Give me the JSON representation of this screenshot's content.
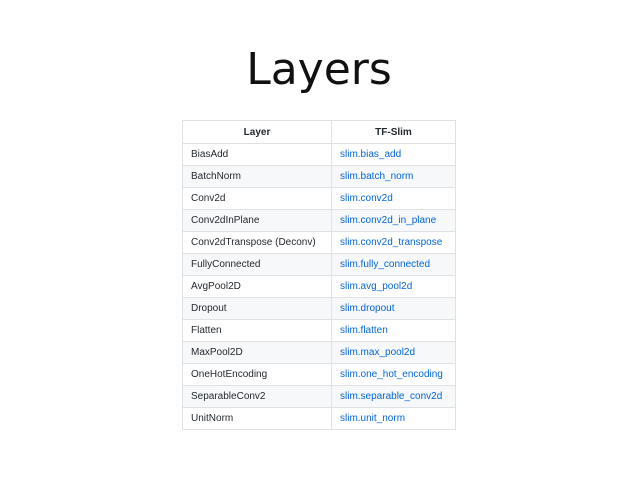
{
  "title": "Layers",
  "table": {
    "headers": [
      "Layer",
      "TF-Slim"
    ],
    "rows": [
      {
        "layer": "BiasAdd",
        "slim": "slim.bias_add"
      },
      {
        "layer": "BatchNorm",
        "slim": "slim.batch_norm"
      },
      {
        "layer": "Conv2d",
        "slim": "slim.conv2d"
      },
      {
        "layer": "Conv2dInPlane",
        "slim": "slim.conv2d_in_plane"
      },
      {
        "layer": "Conv2dTranspose (Deconv)",
        "slim": "slim.conv2d_transpose"
      },
      {
        "layer": "FullyConnected",
        "slim": "slim.fully_connected"
      },
      {
        "layer": "AvgPool2D",
        "slim": "slim.avg_pool2d"
      },
      {
        "layer": "Dropout",
        "slim": "slim.dropout"
      },
      {
        "layer": "Flatten",
        "slim": "slim.flatten"
      },
      {
        "layer": "MaxPool2D",
        "slim": "slim.max_pool2d"
      },
      {
        "layer": "OneHotEncoding",
        "slim": "slim.one_hot_encoding"
      },
      {
        "layer": "SeparableConv2",
        "slim": "slim.separable_conv2d"
      },
      {
        "layer": "UnitNorm",
        "slim": "slim.unit_norm"
      }
    ]
  },
  "colors": {
    "link": "#0366d6",
    "text": "#24292e",
    "border": "#dfe2e5",
    "stripe": "#f6f8fa"
  }
}
